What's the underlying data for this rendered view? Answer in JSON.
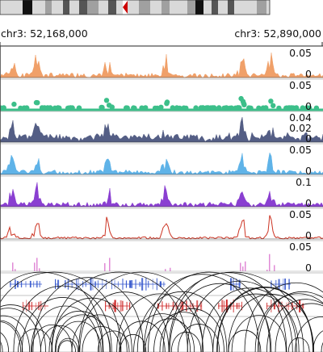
{
  "region": {
    "chrom": "chr3",
    "start_label": "chr3: 52,168,000",
    "end_label": "chr3: 52,890,000"
  },
  "ideogram": {
    "colors": {
      "light": "#d9d9d9",
      "mid": "#a0a0a0",
      "dark": "#555555",
      "black": "#111111",
      "centromere": "#cc0000"
    }
  },
  "tracks": [
    {
      "id": "track-1",
      "type": "area",
      "color": "#f0a069",
      "ticks": [
        "0.05",
        "0"
      ],
      "max": 0.06
    },
    {
      "id": "track-2",
      "type": "points",
      "color": "#3cbf8a",
      "ticks": [
        "0.05",
        "0"
      ],
      "max": 0.06
    },
    {
      "id": "track-3",
      "type": "area",
      "color": "#545e85",
      "ticks": [
        "0.04",
        "0.02",
        "0"
      ],
      "max": 0.045
    },
    {
      "id": "track-4",
      "type": "area",
      "color": "#5fb3e8",
      "ticks": [
        "0.05",
        "0"
      ],
      "max": 0.06
    },
    {
      "id": "track-5",
      "type": "area",
      "color": "#8a3fd1",
      "ticks": [
        "0.1",
        "0"
      ],
      "max": 0.12
    },
    {
      "id": "track-6",
      "type": "line",
      "color": "#cc3322",
      "ticks": [
        "0.05",
        "0"
      ],
      "max": 0.06
    },
    {
      "id": "track-7",
      "type": "bars",
      "color": "#e08ad6",
      "ticks": [
        "0.05",
        "0"
      ],
      "max": 0.06
    },
    {
      "id": "track-8",
      "type": "intervals",
      "color": "#3355cc"
    },
    {
      "id": "track-9",
      "type": "intervals",
      "color": "#cc2222"
    },
    {
      "id": "track-10",
      "type": "arcs",
      "color": "#111111"
    }
  ]
}
